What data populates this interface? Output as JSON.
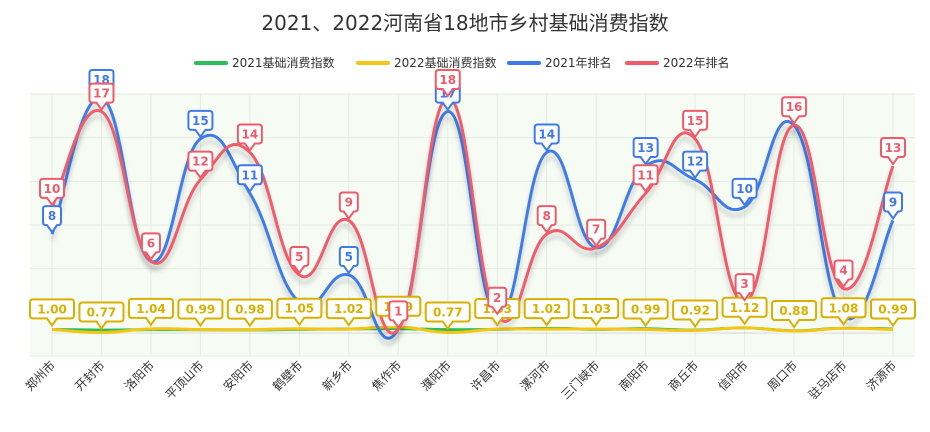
{
  "chart_data": {
    "type": "line",
    "title": "2021、2022河南省18地市乡村基础消费指数",
    "xlabel": "",
    "ylabel": "",
    "ylim": [
      0,
      18
    ],
    "grid": true,
    "legend_position": "top",
    "categories": [
      "郑州市",
      "开封市",
      "洛阳市",
      "平顶山市",
      "安阳市",
      "鹤壁市",
      "新乡市",
      "焦作市",
      "濮阳市",
      "许昌市",
      "漯河市",
      "三门峡市",
      "南阳市",
      "商丘市",
      "信阳市",
      "周口市",
      "驻马店市",
      "济源市"
    ],
    "series": [
      {
        "name": "2021基础消费指数",
        "color": "#2ebd59",
        "values": [
          0.99,
          0.95,
          0.98,
          0.97,
          0.96,
          1.0,
          1.03,
          1.05,
          0.98,
          1.0,
          1.1,
          1.0,
          1.05,
          0.95,
          1.12,
          0.9,
          1.1,
          1.03
        ]
      },
      {
        "name": "2022基础消费指数",
        "color": "#f5c518",
        "values": [
          1.0,
          0.77,
          1.04,
          0.99,
          0.98,
          1.05,
          1.02,
          1.19,
          0.77,
          1.03,
          1.02,
          1.03,
          0.99,
          0.92,
          1.12,
          0.88,
          1.08,
          0.99
        ],
        "labels": [
          "1.00",
          "0.77",
          "1.04",
          "0.99",
          "0.98",
          "1.05",
          "1.02",
          "1.19",
          "0.77",
          "1.03",
          "1.02",
          "1.03",
          "0.99",
          "0.92",
          "1.12",
          "0.88",
          "1.08",
          "0.99"
        ]
      },
      {
        "name": "2021年排名",
        "color": "#3f7be8",
        "values": [
          8,
          18,
          6,
          15,
          11,
          3,
          5,
          1,
          17,
          2,
          14,
          7,
          13,
          12,
          10,
          16,
          2,
          9
        ],
        "labels": [
          "8",
          "18",
          "",
          "15",
          "11",
          "",
          "5",
          "",
          "17",
          "",
          "14",
          "",
          "13",
          "12",
          "10",
          "",
          "",
          "9"
        ]
      },
      {
        "name": "2022年排名",
        "color": "#f05b6a",
        "values": [
          10,
          17,
          6,
          12,
          14,
          5,
          9,
          1,
          18,
          2,
          8,
          7,
          11,
          15,
          3,
          16,
          4,
          13
        ],
        "labels": [
          "10",
          "17",
          "6",
          "12",
          "14",
          "5",
          "9",
          "1",
          "18",
          "2",
          "8",
          "7",
          "11",
          "15",
          "3",
          "16",
          "4",
          "13"
        ]
      }
    ]
  }
}
